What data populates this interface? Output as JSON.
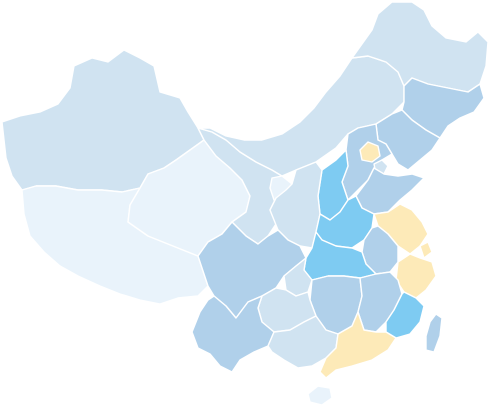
{
  "map": {
    "palette": {
      "lightest": "#e9f3fb",
      "light": "#d0e3f1",
      "medium": "#b0d0ea",
      "strong": "#7ecbf2",
      "highlight": "#fdeab8",
      "border": "#ffffff"
    },
    "regions": [
      {
        "id": "xinjiang",
        "color": "#d0e3f1"
      },
      {
        "id": "tibet",
        "color": "#e9f3fb"
      },
      {
        "id": "qinghai",
        "color": "#e9f3fb"
      },
      {
        "id": "gansu",
        "color": "#d0e3f1"
      },
      {
        "id": "inner-mongolia",
        "color": "#d0e3f1"
      },
      {
        "id": "heilongjiang",
        "color": "#d0e3f1"
      },
      {
        "id": "jilin",
        "color": "#b0d0ea"
      },
      {
        "id": "liaoning",
        "color": "#b0d0ea"
      },
      {
        "id": "beijing",
        "color": "#fdeab8"
      },
      {
        "id": "tianjin",
        "color": "#d0e3f1"
      },
      {
        "id": "hebei",
        "color": "#b0d0ea"
      },
      {
        "id": "shanxi",
        "color": "#7ecbf2"
      },
      {
        "id": "shandong",
        "color": "#b0d0ea"
      },
      {
        "id": "ningxia",
        "color": "#e9f3fb"
      },
      {
        "id": "shaanxi",
        "color": "#d0e3f1"
      },
      {
        "id": "henan",
        "color": "#7ecbf2"
      },
      {
        "id": "jiangsu",
        "color": "#fdeab8"
      },
      {
        "id": "anhui",
        "color": "#b0d0ea"
      },
      {
        "id": "shanghai",
        "color": "#fdeab8"
      },
      {
        "id": "zhejiang",
        "color": "#fdeab8"
      },
      {
        "id": "hubei",
        "color": "#7ecbf2"
      },
      {
        "id": "sichuan",
        "color": "#b0d0ea"
      },
      {
        "id": "chongqing",
        "color": "#d0e3f1"
      },
      {
        "id": "hunan",
        "color": "#b0d0ea"
      },
      {
        "id": "jiangxi",
        "color": "#b0d0ea"
      },
      {
        "id": "fujian",
        "color": "#7ecbf2"
      },
      {
        "id": "guizhou",
        "color": "#d0e3f1"
      },
      {
        "id": "yunnan",
        "color": "#b0d0ea"
      },
      {
        "id": "guangxi",
        "color": "#d0e3f1"
      },
      {
        "id": "guangdong",
        "color": "#fdeab8"
      },
      {
        "id": "hainan",
        "color": "#e9f3fb"
      },
      {
        "id": "taiwan",
        "color": "#b0d0ea"
      }
    ]
  }
}
